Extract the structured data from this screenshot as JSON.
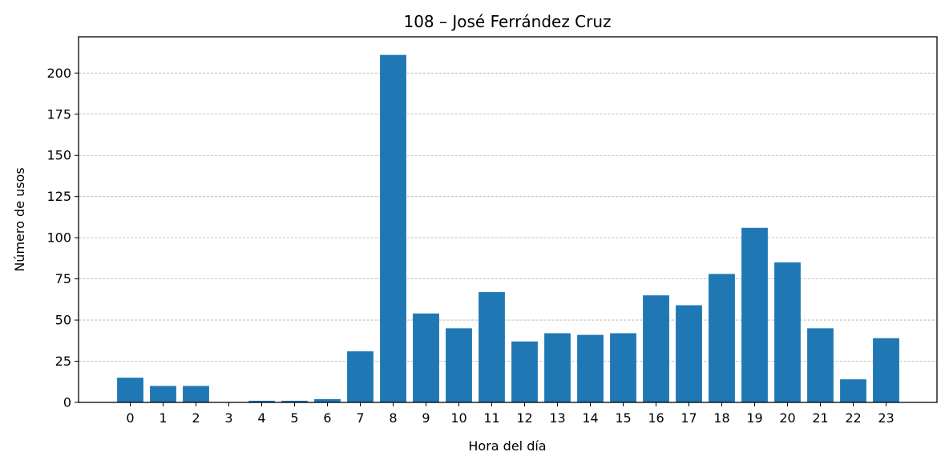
{
  "chart_data": {
    "type": "bar",
    "title": "108 – José Ferrández Cruz",
    "xlabel": "Hora del día",
    "ylabel": "Número de usos",
    "categories": [
      "0",
      "1",
      "2",
      "3",
      "4",
      "5",
      "6",
      "7",
      "8",
      "9",
      "10",
      "11",
      "12",
      "13",
      "14",
      "15",
      "16",
      "17",
      "18",
      "19",
      "20",
      "21",
      "22",
      "23"
    ],
    "values": [
      15,
      10,
      10,
      0,
      1,
      1,
      2,
      31,
      211,
      54,
      45,
      67,
      37,
      42,
      41,
      42,
      65,
      59,
      78,
      106,
      85,
      45,
      14,
      39
    ],
    "ylim": [
      0,
      222
    ],
    "yticks": [
      "0",
      "25",
      "50",
      "75",
      "100",
      "125",
      "150",
      "175",
      "200"
    ],
    "grid": "y-axis dashed",
    "bar_color": "#1f77b4",
    "grid_color": "#b0b0b0"
  }
}
